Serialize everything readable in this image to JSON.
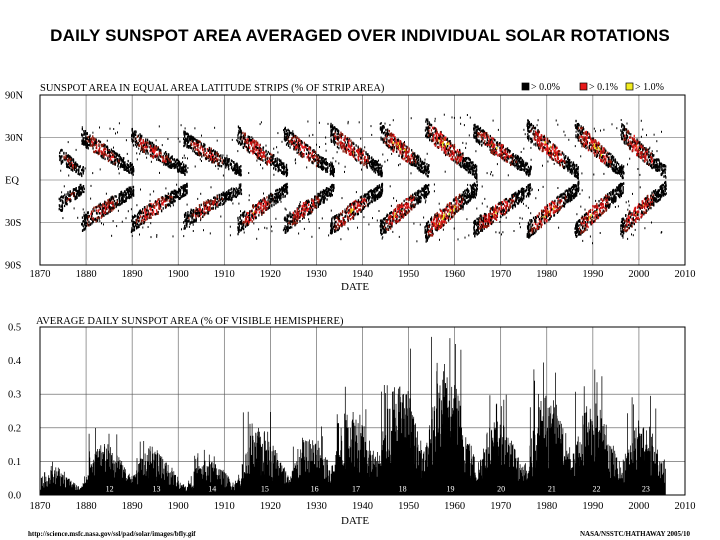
{
  "title": "DAILY SUNSPOT AREA AVERAGED OVER INDIVIDUAL SOLAR ROTATIONS",
  "footer": {
    "url": "http://science.msfc.nasa.gov/ssl/pad/solar/images/bfly.gif",
    "credit": "NASA/NSSTC/HATHAWAY 2005/10"
  },
  "chart_data": [
    {
      "type": "heatmap",
      "title": "SUNSPOT AREA IN EQUAL AREA LATITUDE STRIPS (% OF STRIP AREA)",
      "xlabel": "DATE",
      "ylabel": "",
      "xlim": [
        1870,
        2010
      ],
      "ylim": [
        -90,
        90
      ],
      "x_ticks": [
        "1870",
        "1880",
        "1890",
        "1900",
        "1910",
        "1920",
        "1930",
        "1940",
        "1950",
        "1960",
        "1970",
        "1980",
        "1990",
        "2000",
        "2010"
      ],
      "y_ticks": [
        {
          "value": 90,
          "label": "90N"
        },
        {
          "value": 30,
          "label": "30N"
        },
        {
          "value": 0,
          "label": "EQ"
        },
        {
          "value": -30,
          "label": "30S"
        },
        {
          "value": -90,
          "label": "90S"
        }
      ],
      "legend": [
        {
          "label": "> 0.0%",
          "color": "#000000"
        },
        {
          "label": "> 0.1%",
          "color": "#e8191a"
        },
        {
          "label": "> 1.0%",
          "color": "#f2ec1f"
        }
      ],
      "cycles": [
        {
          "number": 12,
          "start": 1878.9,
          "end": 1890.2,
          "max_lat": 32,
          "min_lat": 7,
          "strength": 0.6
        },
        {
          "number": 13,
          "start": 1889.7,
          "end": 1901.8,
          "max_lat": 32,
          "min_lat": 6,
          "strength": 0.6
        },
        {
          "number": 14,
          "start": 1901.0,
          "end": 1913.6,
          "max_lat": 30,
          "min_lat": 6,
          "strength": 0.5
        },
        {
          "number": 15,
          "start": 1912.8,
          "end": 1923.6,
          "max_lat": 33,
          "min_lat": 6,
          "strength": 0.7
        },
        {
          "number": 16,
          "start": 1922.9,
          "end": 1933.8,
          "max_lat": 33,
          "min_lat": 6,
          "strength": 0.7
        },
        {
          "number": 17,
          "start": 1932.9,
          "end": 1944.2,
          "max_lat": 35,
          "min_lat": 6,
          "strength": 0.8
        },
        {
          "number": 18,
          "start": 1943.7,
          "end": 1954.3,
          "max_lat": 36,
          "min_lat": 6,
          "strength": 0.85
        },
        {
          "number": 19,
          "start": 1953.4,
          "end": 1964.8,
          "max_lat": 40,
          "min_lat": 5,
          "strength": 1.0
        },
        {
          "number": 20,
          "start": 1964.0,
          "end": 1976.5,
          "max_lat": 36,
          "min_lat": 6,
          "strength": 0.75
        },
        {
          "number": 21,
          "start": 1975.6,
          "end": 1986.8,
          "max_lat": 38,
          "min_lat": 5,
          "strength": 0.9
        },
        {
          "number": 22,
          "start": 1986.0,
          "end": 1996.6,
          "max_lat": 38,
          "min_lat": 5,
          "strength": 0.9
        },
        {
          "number": 23,
          "start": 1995.9,
          "end": 2005.8,
          "max_lat": 36,
          "min_lat": 5,
          "strength": 0.85
        }
      ],
      "partial_cycle_before_1878": {
        "start": 1874.0,
        "end": 1879.5,
        "max_lat": 18,
        "min_lat": 5,
        "strength": 0.35
      }
    },
    {
      "type": "area",
      "title": "AVERAGE DAILY SUNSPOT AREA (% OF VISIBLE HEMISPHERE)",
      "xlabel": "DATE",
      "ylabel": "",
      "xlim": [
        1870,
        2010
      ],
      "ylim": [
        0,
        0.5
      ],
      "x_ticks": [
        "1870",
        "1880",
        "1890",
        "1900",
        "1910",
        "1920",
        "1930",
        "1940",
        "1950",
        "1960",
        "1970",
        "1980",
        "1990",
        "2000",
        "2010"
      ],
      "y_ticks": [
        "0.0",
        "0.1",
        "0.2",
        "0.3",
        "0.4",
        "0.5"
      ],
      "gridlines": [
        0.1,
        0.2,
        0.3
      ],
      "cycle_peaks": [
        {
          "number": "12",
          "max_year": 1883.9,
          "peak": 0.2
        },
        {
          "number": "13",
          "max_year": 1894.1,
          "peak": 0.19
        },
        {
          "number": "14",
          "max_year": 1906.2,
          "peak": 0.14
        },
        {
          "number": "15",
          "max_year": 1917.6,
          "peak": 0.26
        },
        {
          "number": "16",
          "max_year": 1928.4,
          "peak": 0.22
        },
        {
          "number": "17",
          "max_year": 1937.4,
          "peak": 0.35
        },
        {
          "number": "18",
          "max_year": 1947.5,
          "peak": 0.45
        },
        {
          "number": "19",
          "max_year": 1957.9,
          "peak": 0.5
        },
        {
          "number": "20",
          "max_year": 1968.9,
          "peak": 0.3
        },
        {
          "number": "21",
          "max_year": 1979.9,
          "peak": 0.4
        },
        {
          "number": "22",
          "max_year": 1989.6,
          "peak": 0.38
        },
        {
          "number": "23",
          "max_year": 2000.3,
          "peak": 0.3
        }
      ],
      "early_peak": {
        "max_year": 1872.5,
        "peak": 0.1
      }
    }
  ]
}
